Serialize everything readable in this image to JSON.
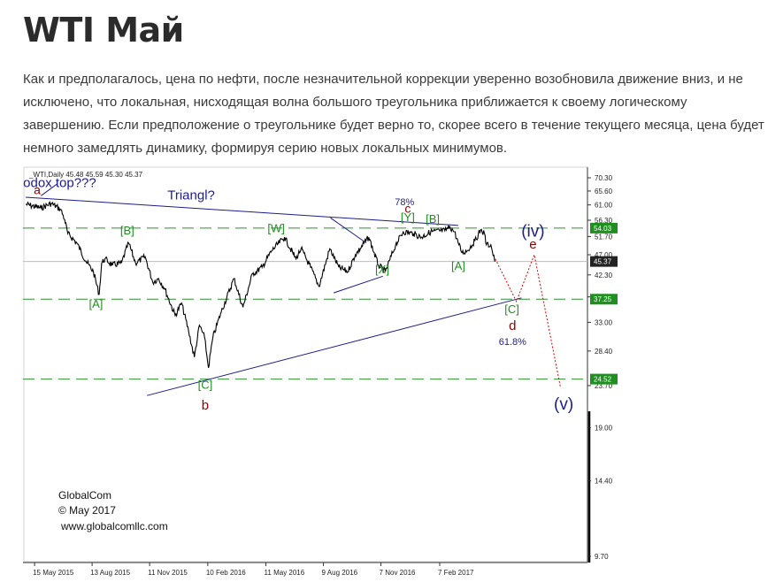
{
  "page": {
    "title": "WTI Май",
    "text": "Как и предполагалось, цена по нефти, после незначительной коррекции уверенно возобновила движение вниз, и не исключено, что локальная, нисходящая волна большого треугольника приближается к своему логическому завершению. Если предположение о треугольнике будет верно то, скорее всего в течение текущего месяца, цена будет немного замедлять динамику, формируя серию новых локальных минимумов."
  },
  "chart_data": {
    "type": "line",
    "title": "_WTI,Daily  45.48 45.59 45.30 45.37",
    "y_scale": "log",
    "ylim": [
      9.7,
      70.3
    ],
    "y_ticks": [
      "70.30",
      "65.60",
      "61.00",
      "56.30",
      "51.70",
      "47.00",
      "42.30",
      "37.70",
      "33.00",
      "28.40",
      "23.70",
      "19.00",
      "14.40",
      "9.70"
    ],
    "x_ticks": [
      "15 May 2015",
      "13 Aug 2015",
      "11 Nov 2015",
      "10 Feb 2016",
      "11 May 2016",
      "9 Aug 2016",
      "7 Nov 2016",
      "7 Feb 2017"
    ],
    "price_tags": [
      {
        "value": 54.03,
        "label": "54.03",
        "color": "#1f8f1f"
      },
      {
        "value": 45.37,
        "label": "45.37",
        "color": "#222222"
      },
      {
        "value": 37.25,
        "label": "37.25",
        "color": "#1f8f1f"
      },
      {
        "value": 24.52,
        "label": "24.52",
        "color": "#1f8f1f"
      }
    ],
    "series": [
      {
        "values": [
          {
            "date": "2015-05-01",
            "y": 61.2
          },
          {
            "date": "2015-05-25",
            "y": 60.0
          },
          {
            "date": "2015-06-10",
            "y": 61.5
          },
          {
            "date": "2015-06-25",
            "y": 59.5
          },
          {
            "date": "2015-07-01",
            "y": 56.5
          },
          {
            "date": "2015-07-06",
            "y": 52.5
          },
          {
            "date": "2015-07-20",
            "y": 50.0
          },
          {
            "date": "2015-08-03",
            "y": 45.5
          },
          {
            "date": "2015-08-15",
            "y": 43.0
          },
          {
            "date": "2015-08-24",
            "y": 38.2
          },
          {
            "date": "2015-08-28",
            "y": 45.0
          },
          {
            "date": "2015-09-02",
            "y": 46.0
          },
          {
            "date": "2015-09-14",
            "y": 44.5
          },
          {
            "date": "2015-09-28",
            "y": 45.0
          },
          {
            "date": "2015-10-09",
            "y": 50.0
          },
          {
            "date": "2015-10-20",
            "y": 45.0
          },
          {
            "date": "2015-11-04",
            "y": 46.5
          },
          {
            "date": "2015-11-16",
            "y": 40.7
          },
          {
            "date": "2015-11-25",
            "y": 41.5
          },
          {
            "date": "2015-12-04",
            "y": 39.5
          },
          {
            "date": "2015-12-21",
            "y": 34.2
          },
          {
            "date": "2015-12-31",
            "y": 36.5
          },
          {
            "date": "2016-01-11",
            "y": 31.5
          },
          {
            "date": "2016-01-20",
            "y": 27.5
          },
          {
            "date": "2016-01-28",
            "y": 32.5
          },
          {
            "date": "2016-02-05",
            "y": 30.5
          },
          {
            "date": "2016-02-11",
            "y": 26.0
          },
          {
            "date": "2016-02-18",
            "y": 30.5
          },
          {
            "date": "2016-03-01",
            "y": 34.5
          },
          {
            "date": "2016-03-22",
            "y": 41.5
          },
          {
            "date": "2016-04-05",
            "y": 35.7
          },
          {
            "date": "2016-04-20",
            "y": 42.5
          },
          {
            "date": "2016-05-05",
            "y": 44.0
          },
          {
            "date": "2016-05-20",
            "y": 48.0
          },
          {
            "date": "2016-06-09",
            "y": 51.5
          },
          {
            "date": "2016-06-27",
            "y": 46.0
          },
          {
            "date": "2016-07-05",
            "y": 48.5
          },
          {
            "date": "2016-07-20",
            "y": 44.0
          },
          {
            "date": "2016-08-02",
            "y": 39.8
          },
          {
            "date": "2016-08-19",
            "y": 48.5
          },
          {
            "date": "2016-09-02",
            "y": 44.0
          },
          {
            "date": "2016-09-16",
            "y": 43.0
          },
          {
            "date": "2016-09-28",
            "y": 47.0
          },
          {
            "date": "2016-10-19",
            "y": 51.5
          },
          {
            "date": "2016-11-03",
            "y": 44.5
          },
          {
            "date": "2016-11-14",
            "y": 43.0
          },
          {
            "date": "2016-11-30",
            "y": 49.5
          },
          {
            "date": "2016-12-12",
            "y": 53.0
          },
          {
            "date": "2016-12-28",
            "y": 52.5
          },
          {
            "date": "2017-01-09",
            "y": 51.5
          },
          {
            "date": "2017-01-24",
            "y": 53.0
          },
          {
            "date": "2017-02-15",
            "y": 53.3
          },
          {
            "date": "2017-02-23",
            "y": 54.4
          },
          {
            "date": "2017-03-02",
            "y": 53.0
          },
          {
            "date": "2017-03-09",
            "y": 49.5
          },
          {
            "date": "2017-03-14",
            "y": 47.5
          },
          {
            "date": "2017-03-22",
            "y": 48.0
          },
          {
            "date": "2017-04-03",
            "y": 50.5
          },
          {
            "date": "2017-04-12",
            "y": 53.5
          },
          {
            "date": "2017-04-18",
            "y": 52.5
          },
          {
            "date": "2017-04-21",
            "y": 49.5
          },
          {
            "date": "2017-04-28",
            "y": 49.5
          },
          {
            "date": "2017-05-04",
            "y": 45.5
          },
          {
            "date": "2017-05-05",
            "y": 45.37
          }
        ]
      }
    ],
    "projection": [
      {
        "date": "2017-05-05",
        "y": 46.0
      },
      {
        "date": "2017-06-07",
        "y": 36.8
      },
      {
        "date": "2017-07-05",
        "y": 47.0
      },
      {
        "date": "2017-08-15",
        "y": 23.5
      }
    ],
    "trendlines": [
      {
        "from": {
          "date": "2015-05-01",
          "y": 63.5
        },
        "to": {
          "date": "2017-03-08",
          "y": 54.8
        },
        "color": "#1c1c8c"
      },
      {
        "from": {
          "date": "2015-11-07",
          "y": 22.5
        },
        "to": {
          "date": "2017-06-15",
          "y": 37.5
        },
        "color": "#1c1c8c"
      },
      {
        "from": {
          "date": "2016-08-25",
          "y": 38.5
        },
        "to": {
          "date": "2016-11-10",
          "y": 42.0
        },
        "color": "#1c1c8c"
      },
      {
        "from": {
          "date": "2016-08-20",
          "y": 57.0
        },
        "to": {
          "date": "2016-10-15",
          "y": 50.0
        },
        "color": "#1c1c8c"
      },
      {
        "from": {
          "date": "2015-05-25",
          "y": 64.0
        },
        "to": {
          "date": "2015-06-20",
          "y": 68.2
        },
        "color": "#1c1c8c"
      }
    ],
    "hlines": [
      54.03,
      37.25,
      24.52
    ],
    "annotations": [
      {
        "text": "a",
        "date": "2015-05-19",
        "y": 64.6,
        "color": "#8b0000",
        "size": 14
      },
      {
        "text": "Orthodox top???",
        "date": "2015-06-03",
        "y": 67.0,
        "color": "#1c1c8c",
        "size": 15
      },
      {
        "text": "Triangl?",
        "date": "2016-01-15",
        "y": 62.7,
        "color": "#1c1c8c",
        "size": 15
      },
      {
        "text": "78%",
        "date": "2016-12-14",
        "y": 60.9,
        "color": "#1c1c8c",
        "size": 11
      },
      {
        "text": "c",
        "date": "2016-12-19",
        "y": 58.6,
        "color": "#8b0000",
        "size": 14
      },
      {
        "text": "[Y]",
        "date": "2016-12-19",
        "y": 56.1,
        "color": "#1f8f1f",
        "size": 13
      },
      {
        "text": "[B]",
        "date": "2017-01-27",
        "y": 55.5,
        "color": "#1f8f1f",
        "size": 13
      },
      {
        "text": "[B]",
        "date": "2015-10-07",
        "y": 52.3,
        "color": "#1f8f1f",
        "size": 13
      },
      {
        "text": "[W]",
        "date": "2016-05-27",
        "y": 52.9,
        "color": "#1f8f1f",
        "size": 13
      },
      {
        "text": "[X]",
        "date": "2016-11-09",
        "y": 42.6,
        "color": "#1f8f1f",
        "size": 13
      },
      {
        "text": "[A]",
        "date": "2017-03-08",
        "y": 43.4,
        "color": "#1f8f1f",
        "size": 13
      },
      {
        "text": "[A]",
        "date": "2015-08-19",
        "y": 35.6,
        "color": "#1f8f1f",
        "size": 13
      },
      {
        "text": "[C]",
        "date": "2016-02-06",
        "y": 23.3,
        "color": "#1f8f1f",
        "size": 13
      },
      {
        "text": "b",
        "date": "2016-02-06",
        "y": 20.9,
        "color": "#8b0000",
        "size": 15
      },
      {
        "text": "[C]",
        "date": "2017-05-31",
        "y": 34.6,
        "color": "#1f8f1f",
        "size": 13
      },
      {
        "text": "d",
        "date": "2017-06-01",
        "y": 31.7,
        "color": "#8b0000",
        "size": 15
      },
      {
        "text": "61.8%",
        "date": "2017-06-01",
        "y": 29.3,
        "color": "#1c1c8c",
        "size": 11
      },
      {
        "text": "(iv)",
        "date": "2017-07-03",
        "y": 51.7,
        "color": "#1c1c8c",
        "size": 19
      },
      {
        "text": "e",
        "date": "2017-07-03",
        "y": 48.5,
        "color": "#8b0000",
        "size": 15
      },
      {
        "text": "(v)",
        "date": "2017-08-20",
        "y": 20.9,
        "color": "#1c1c8c",
        "size": 19
      }
    ],
    "watermark": [
      "GlobalCom",
      "© May 2017",
      "www.globalcomllc.com"
    ]
  }
}
